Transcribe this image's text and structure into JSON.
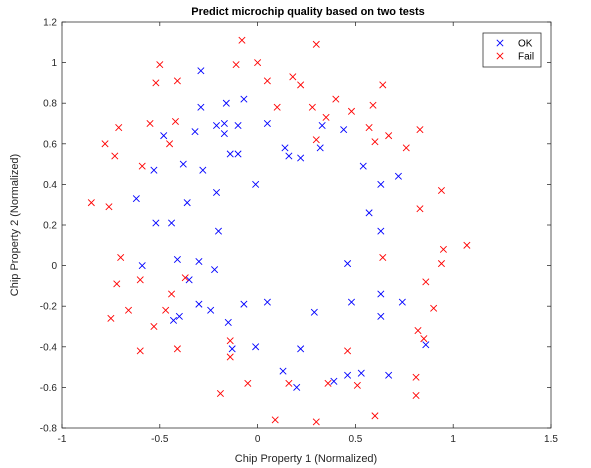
{
  "chart_data": {
    "type": "scatter",
    "title": "Predict microchip quality based on two tests",
    "xlabel": "Chip Property 1 (Normalized)",
    "ylabel": "Chip Property 2 (Normalized)",
    "xlim": [
      -1,
      1.5
    ],
    "ylim": [
      -0.8,
      1.2
    ],
    "xticks": [
      -1,
      -0.5,
      0,
      0.5,
      1,
      1.5
    ],
    "xtick_labels": [
      "-1",
      "-0.5",
      "0",
      "0.5",
      "1",
      "1.5"
    ],
    "yticks": [
      -0.8,
      -0.6,
      -0.4,
      -0.2,
      0,
      0.2,
      0.4,
      0.6,
      0.8,
      1,
      1.2
    ],
    "ytick_labels": [
      "-0.8",
      "-0.6",
      "-0.4",
      "-0.2",
      "0",
      "0.2",
      "0.4",
      "0.6",
      "0.8",
      "1",
      "1.2"
    ],
    "grid": false,
    "marker": "x",
    "legend_position": "top-right",
    "series": [
      {
        "name": "OK",
        "color": "#0000ff",
        "points": [
          [
            -0.29,
            0.96
          ],
          [
            -0.07,
            0.82
          ],
          [
            -0.16,
            0.8
          ],
          [
            -0.29,
            0.78
          ],
          [
            0.05,
            0.7
          ],
          [
            -0.21,
            0.69
          ],
          [
            -0.17,
            0.7
          ],
          [
            -0.1,
            0.69
          ],
          [
            -0.32,
            0.66
          ],
          [
            -0.17,
            0.65
          ],
          [
            -0.48,
            0.64
          ],
          [
            0.33,
            0.69
          ],
          [
            0.14,
            0.58
          ],
          [
            0.32,
            0.58
          ],
          [
            0.16,
            0.54
          ],
          [
            0.22,
            0.53
          ],
          [
            -0.14,
            0.55
          ],
          [
            -0.1,
            0.55
          ],
          [
            -0.53,
            0.47
          ],
          [
            -0.38,
            0.5
          ],
          [
            -0.28,
            0.47
          ],
          [
            -0.36,
            0.31
          ],
          [
            -0.21,
            0.36
          ],
          [
            -0.01,
            0.4
          ],
          [
            0.44,
            0.67
          ],
          [
            0.54,
            0.49
          ],
          [
            0.63,
            0.4
          ],
          [
            0.72,
            0.44
          ],
          [
            -0.62,
            0.33
          ],
          [
            -0.52,
            0.21
          ],
          [
            -0.44,
            0.21
          ],
          [
            -0.2,
            0.17
          ],
          [
            0.57,
            0.26
          ],
          [
            0.63,
            0.17
          ],
          [
            -0.59,
            0.0
          ],
          [
            -0.41,
            0.03
          ],
          [
            -0.3,
            0.02
          ],
          [
            -0.22,
            -0.02
          ],
          [
            -0.35,
            -0.07
          ],
          [
            -0.43,
            -0.27
          ],
          [
            -0.4,
            -0.25
          ],
          [
            -0.3,
            -0.19
          ],
          [
            -0.24,
            -0.22
          ],
          [
            -0.07,
            -0.19
          ],
          [
            -0.15,
            -0.28
          ],
          [
            0.05,
            -0.18
          ],
          [
            0.29,
            -0.23
          ],
          [
            0.46,
            0.01
          ],
          [
            0.48,
            -0.18
          ],
          [
            0.63,
            -0.14
          ],
          [
            0.63,
            -0.25
          ],
          [
            0.74,
            -0.18
          ],
          [
            -0.13,
            -0.41
          ],
          [
            -0.01,
            -0.4
          ],
          [
            0.22,
            -0.41
          ],
          [
            0.13,
            -0.52
          ],
          [
            0.2,
            -0.6
          ],
          [
            0.39,
            -0.57
          ],
          [
            0.46,
            -0.54
          ],
          [
            0.53,
            -0.53
          ],
          [
            0.67,
            -0.54
          ],
          [
            0.86,
            -0.39
          ]
        ]
      },
      {
        "name": "Fail",
        "color": "#ff0000",
        "points": [
          [
            -0.08,
            1.11
          ],
          [
            0.3,
            1.09
          ],
          [
            -0.5,
            0.99
          ],
          [
            -0.11,
            0.99
          ],
          [
            0.0,
            1.0
          ],
          [
            0.05,
            0.91
          ],
          [
            -0.41,
            0.91
          ],
          [
            -0.52,
            0.9
          ],
          [
            0.18,
            0.93
          ],
          [
            0.22,
            0.89
          ],
          [
            0.64,
            0.89
          ],
          [
            0.4,
            0.82
          ],
          [
            0.1,
            0.78
          ],
          [
            0.28,
            0.78
          ],
          [
            0.59,
            0.79
          ],
          [
            0.48,
            0.76
          ],
          [
            -0.42,
            0.71
          ],
          [
            -0.55,
            0.7
          ],
          [
            -0.71,
            0.68
          ],
          [
            0.35,
            0.73
          ],
          [
            0.57,
            0.68
          ],
          [
            0.67,
            0.64
          ],
          [
            0.83,
            0.67
          ],
          [
            -0.45,
            0.6
          ],
          [
            -0.78,
            0.6
          ],
          [
            -0.59,
            0.49
          ],
          [
            0.3,
            0.62
          ],
          [
            0.6,
            0.61
          ],
          [
            0.76,
            0.58
          ],
          [
            -0.73,
            0.54
          ],
          [
            -0.85,
            0.31
          ],
          [
            -0.76,
            0.29
          ],
          [
            0.94,
            0.37
          ],
          [
            0.83,
            0.28
          ],
          [
            0.95,
            0.08
          ],
          [
            1.07,
            0.1
          ],
          [
            0.94,
            0.01
          ],
          [
            0.64,
            0.04
          ],
          [
            -0.7,
            0.04
          ],
          [
            -0.6,
            -0.07
          ],
          [
            -0.72,
            -0.09
          ],
          [
            -0.37,
            -0.06
          ],
          [
            -0.66,
            -0.22
          ],
          [
            -0.75,
            -0.26
          ],
          [
            -0.47,
            -0.22
          ],
          [
            -0.44,
            -0.14
          ],
          [
            0.86,
            -0.08
          ],
          [
            0.9,
            -0.21
          ],
          [
            0.82,
            -0.32
          ],
          [
            -0.53,
            -0.3
          ],
          [
            -0.6,
            -0.42
          ],
          [
            -0.41,
            -0.41
          ],
          [
            -0.14,
            -0.37
          ],
          [
            -0.14,
            -0.45
          ],
          [
            0.46,
            -0.42
          ],
          [
            0.85,
            -0.36
          ],
          [
            0.81,
            -0.64
          ],
          [
            -0.19,
            -0.63
          ],
          [
            -0.05,
            -0.58
          ],
          [
            0.16,
            -0.58
          ],
          [
            0.36,
            -0.58
          ],
          [
            0.51,
            -0.59
          ],
          [
            0.81,
            -0.55
          ],
          [
            0.09,
            -0.76
          ],
          [
            0.3,
            -0.77
          ],
          [
            0.6,
            -0.74
          ]
        ]
      }
    ]
  }
}
